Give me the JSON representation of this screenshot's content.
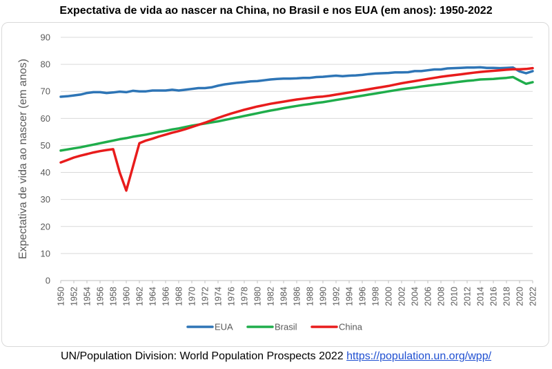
{
  "title": "Expectativa de vida ao nascer na China, no Brasil e nos EUA (em anos): 1950-2022",
  "source": {
    "text": "UN/Population Division: World Population Prospects 2022 ",
    "link": "https://population.un.org/wpp/"
  },
  "chart_data": {
    "type": "line",
    "title": "Expectativa de vida ao nascer na China, no Brasil e nos EUA (em anos): 1950-2022",
    "xlabel": "",
    "ylabel": "Expectativa de vida ao nascer (em anos)",
    "ylim": [
      0,
      90
    ],
    "yticks": [
      0,
      10,
      20,
      30,
      40,
      50,
      60,
      70,
      80,
      90
    ],
    "xlim": [
      1950,
      2022
    ],
    "xtick_step": 2,
    "grid": "horizontal",
    "legend_position": "bottom",
    "series": [
      {
        "name": "EUA",
        "color": "#2e75b6",
        "x": [
          1950,
          1951,
          1952,
          1953,
          1954,
          1955,
          1956,
          1957,
          1958,
          1959,
          1960,
          1961,
          1962,
          1963,
          1964,
          1965,
          1966,
          1967,
          1968,
          1969,
          1970,
          1971,
          1972,
          1973,
          1974,
          1975,
          1976,
          1977,
          1978,
          1979,
          1980,
          1981,
          1982,
          1983,
          1984,
          1985,
          1986,
          1987,
          1988,
          1989,
          1990,
          1991,
          1992,
          1993,
          1994,
          1995,
          1996,
          1997,
          1998,
          1999,
          2000,
          2001,
          2002,
          2003,
          2004,
          2005,
          2006,
          2007,
          2008,
          2009,
          2010,
          2011,
          2012,
          2013,
          2014,
          2015,
          2016,
          2017,
          2018,
          2019,
          2020,
          2021,
          2022
        ],
        "values": [
          68.0,
          68.2,
          68.5,
          68.8,
          69.4,
          69.7,
          69.7,
          69.4,
          69.6,
          69.9,
          69.7,
          70.2,
          70.0,
          70.0,
          70.3,
          70.3,
          70.3,
          70.6,
          70.3,
          70.6,
          70.9,
          71.2,
          71.2,
          71.5,
          72.1,
          72.6,
          72.9,
          73.2,
          73.4,
          73.7,
          73.8,
          74.1,
          74.4,
          74.6,
          74.7,
          74.7,
          74.8,
          75.0,
          75.0,
          75.3,
          75.4,
          75.6,
          75.8,
          75.6,
          75.8,
          75.9,
          76.1,
          76.4,
          76.6,
          76.7,
          76.8,
          77.0,
          77.0,
          77.1,
          77.5,
          77.5,
          77.8,
          78.1,
          78.1,
          78.5,
          78.6,
          78.7,
          78.8,
          78.8,
          78.9,
          78.7,
          78.7,
          78.6,
          78.7,
          78.8,
          77.4,
          76.7,
          77.5
        ]
      },
      {
        "name": "Brasil",
        "color": "#1fad4b",
        "x": [
          1950,
          1951,
          1952,
          1953,
          1954,
          1955,
          1956,
          1957,
          1958,
          1959,
          1960,
          1961,
          1962,
          1963,
          1964,
          1965,
          1966,
          1967,
          1968,
          1969,
          1970,
          1971,
          1972,
          1973,
          1974,
          1975,
          1976,
          1977,
          1978,
          1979,
          1980,
          1981,
          1982,
          1983,
          1984,
          1985,
          1986,
          1987,
          1988,
          1989,
          1990,
          1991,
          1992,
          1993,
          1994,
          1995,
          1996,
          1997,
          1998,
          1999,
          2000,
          2001,
          2002,
          2003,
          2004,
          2005,
          2006,
          2007,
          2008,
          2009,
          2010,
          2011,
          2012,
          2013,
          2014,
          2015,
          2016,
          2017,
          2018,
          2019,
          2020,
          2021,
          2022
        ],
        "values": [
          48.1,
          48.5,
          48.9,
          49.3,
          49.8,
          50.3,
          50.8,
          51.3,
          51.8,
          52.3,
          52.7,
          53.2,
          53.6,
          54.0,
          54.5,
          55.0,
          55.4,
          55.9,
          56.3,
          56.8,
          57.3,
          57.7,
          58.1,
          58.5,
          58.9,
          59.4,
          59.9,
          60.4,
          60.9,
          61.4,
          61.9,
          62.4,
          62.9,
          63.3,
          63.8,
          64.2,
          64.6,
          65.0,
          65.3,
          65.7,
          66.0,
          66.4,
          66.8,
          67.2,
          67.6,
          68.0,
          68.4,
          68.8,
          69.2,
          69.6,
          70.0,
          70.4,
          70.8,
          71.1,
          71.4,
          71.8,
          72.1,
          72.4,
          72.7,
          73.0,
          73.3,
          73.6,
          73.9,
          74.1,
          74.4,
          74.5,
          74.6,
          74.8,
          75.0,
          75.3,
          74.0,
          72.8,
          73.4
        ]
      },
      {
        "name": "China",
        "color": "#e81c1c",
        "x": [
          1950,
          1951,
          1952,
          1953,
          1954,
          1955,
          1956,
          1957,
          1958,
          1959,
          1960,
          1961,
          1962,
          1963,
          1964,
          1965,
          1966,
          1967,
          1968,
          1969,
          1970,
          1971,
          1972,
          1973,
          1974,
          1975,
          1976,
          1977,
          1978,
          1979,
          1980,
          1981,
          1982,
          1983,
          1984,
          1985,
          1986,
          1987,
          1988,
          1989,
          1990,
          1991,
          1992,
          1993,
          1994,
          1995,
          1996,
          1997,
          1998,
          1999,
          2000,
          2001,
          2002,
          2003,
          2004,
          2005,
          2006,
          2007,
          2008,
          2009,
          2010,
          2011,
          2012,
          2013,
          2014,
          2015,
          2016,
          2017,
          2018,
          2019,
          2020,
          2021,
          2022
        ],
        "values": [
          43.7,
          44.6,
          45.5,
          46.2,
          46.8,
          47.4,
          47.9,
          48.3,
          48.6,
          40.0,
          33.3,
          42.0,
          50.8,
          51.8,
          52.5,
          53.3,
          54.0,
          54.7,
          55.3,
          56.0,
          56.8,
          57.6,
          58.4,
          59.3,
          60.2,
          61.0,
          61.8,
          62.5,
          63.2,
          63.8,
          64.4,
          64.9,
          65.4,
          65.8,
          66.2,
          66.6,
          67.0,
          67.3,
          67.6,
          67.9,
          68.1,
          68.4,
          68.8,
          69.2,
          69.6,
          70.0,
          70.4,
          70.8,
          71.2,
          71.6,
          72.0,
          72.5,
          73.0,
          73.4,
          73.8,
          74.2,
          74.6,
          75.0,
          75.4,
          75.7,
          76.0,
          76.3,
          76.6,
          76.9,
          77.2,
          77.4,
          77.6,
          77.8,
          78.0,
          78.2,
          78.2,
          78.3,
          78.6
        ]
      }
    ]
  }
}
